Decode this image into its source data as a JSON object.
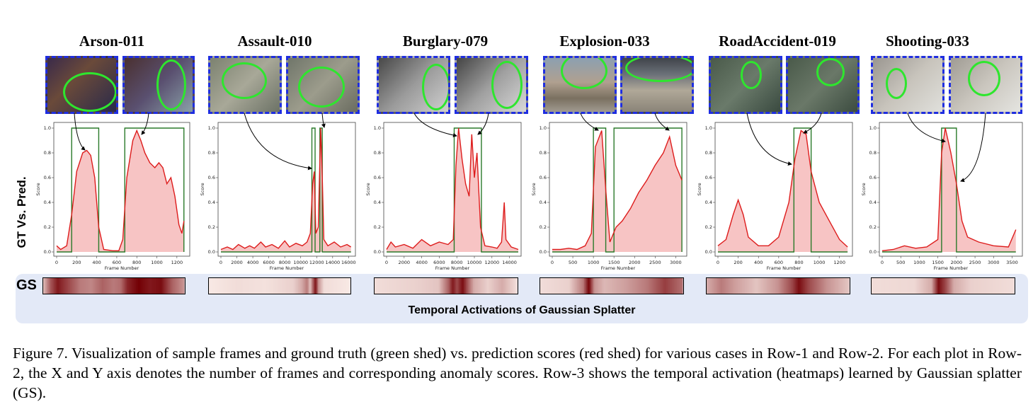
{
  "row_labels": {
    "gt_vs_pred": "GT Vs. Pred.",
    "gs": "GS"
  },
  "heatmap_caption": "Temporal Activations of Gaussian Splatter",
  "caption": "Figure 7. Visualization of sample frames and ground truth (green shed) vs. prediction scores (red shed) for various cases in Row-1 and Row-2. For each plot in Row-2, the X and Y axis denotes the number of frames and corresponding anomaly scores. Row-3 shows the temporal activation (heatmaps) learned by Gaussian splatter (GS).",
  "colors": {
    "frame_border": "#1f2ee0",
    "ellipse": "#2ee62e",
    "gt": "#2a7a2a",
    "pred": "#dd1c1c",
    "pred_fill": "#f7c4c4",
    "band": "#e3e9f7"
  },
  "chart_data": [
    {
      "type": "area",
      "title": "Arson-011",
      "xlabel": "Frame Number",
      "ylabel": "Score",
      "xlim": [
        0,
        1300
      ],
      "ylim": [
        0,
        1.0
      ],
      "xticks": [
        0,
        200,
        400,
        600,
        800,
        1000,
        1200
      ],
      "yticks": [
        0.0,
        0.2,
        0.4,
        0.6,
        0.8,
        1.0
      ],
      "gt_intervals": [
        [
          150,
          420
        ],
        [
          680,
          1270
        ]
      ],
      "pred_points": [
        [
          0,
          0.05
        ],
        [
          40,
          0.02
        ],
        [
          100,
          0.05
        ],
        [
          150,
          0.3
        ],
        [
          200,
          0.65
        ],
        [
          260,
          0.8
        ],
        [
          300,
          0.82
        ],
        [
          340,
          0.78
        ],
        [
          380,
          0.6
        ],
        [
          420,
          0.2
        ],
        [
          470,
          0.02
        ],
        [
          560,
          0.01
        ],
        [
          620,
          0.01
        ],
        [
          660,
          0.1
        ],
        [
          700,
          0.6
        ],
        [
          760,
          0.9
        ],
        [
          800,
          0.98
        ],
        [
          840,
          0.9
        ],
        [
          880,
          0.8
        ],
        [
          930,
          0.72
        ],
        [
          980,
          0.68
        ],
        [
          1020,
          0.72
        ],
        [
          1060,
          0.68
        ],
        [
          1100,
          0.55
        ],
        [
          1140,
          0.6
        ],
        [
          1180,
          0.45
        ],
        [
          1220,
          0.22
        ],
        [
          1250,
          0.15
        ],
        [
          1270,
          0.25
        ]
      ],
      "heat": [
        [
          0,
          0.25
        ],
        [
          0.05,
          0.65
        ],
        [
          0.1,
          0.9
        ],
        [
          0.18,
          0.7
        ],
        [
          0.26,
          0.5
        ],
        [
          0.34,
          0.45
        ],
        [
          0.42,
          0.6
        ],
        [
          0.5,
          0.5
        ],
        [
          0.55,
          0.55
        ],
        [
          0.6,
          0.85
        ],
        [
          0.68,
          1.0
        ],
        [
          0.76,
          0.9
        ],
        [
          0.84,
          0.95
        ],
        [
          0.92,
          0.6
        ],
        [
          1,
          0.4
        ]
      ]
    },
    {
      "type": "area",
      "title": "Assault-010",
      "xlabel": "Frame Number",
      "ylabel": "Score",
      "xlim": [
        0,
        16500
      ],
      "ylim": [
        0,
        1.0
      ],
      "xticks": [
        0,
        2000,
        4000,
        6000,
        8000,
        10000,
        12000,
        14000,
        16000
      ],
      "yticks": [
        0.0,
        0.2,
        0.4,
        0.6,
        0.8,
        1.0
      ],
      "gt_intervals": [
        [
          11400,
          11800
        ],
        [
          12400,
          12700
        ]
      ],
      "pred_points": [
        [
          0,
          0.02
        ],
        [
          800,
          0.04
        ],
        [
          1500,
          0.02
        ],
        [
          2200,
          0.06
        ],
        [
          3000,
          0.03
        ],
        [
          3600,
          0.05
        ],
        [
          4200,
          0.03
        ],
        [
          5000,
          0.08
        ],
        [
          5600,
          0.04
        ],
        [
          6400,
          0.06
        ],
        [
          7200,
          0.03
        ],
        [
          8000,
          0.09
        ],
        [
          8600,
          0.04
        ],
        [
          9400,
          0.07
        ],
        [
          10200,
          0.05
        ],
        [
          10800,
          0.08
        ],
        [
          11200,
          0.15
        ],
        [
          11500,
          0.55
        ],
        [
          11700,
          0.65
        ],
        [
          11900,
          0.15
        ],
        [
          12200,
          0.2
        ],
        [
          12500,
          1.0
        ],
        [
          12700,
          0.6
        ],
        [
          12900,
          0.1
        ],
        [
          13400,
          0.05
        ],
        [
          14200,
          0.08
        ],
        [
          15000,
          0.04
        ],
        [
          15800,
          0.06
        ],
        [
          16300,
          0.04
        ]
      ],
      "heat": [
        [
          0,
          0.05
        ],
        [
          0.2,
          0.1
        ],
        [
          0.4,
          0.08
        ],
        [
          0.6,
          0.15
        ],
        [
          0.66,
          0.3
        ],
        [
          0.7,
          0.5
        ],
        [
          0.72,
          0.2
        ],
        [
          0.76,
          0.95
        ],
        [
          0.78,
          0.4
        ],
        [
          0.82,
          0.1
        ],
        [
          1,
          0.05
        ]
      ]
    },
    {
      "type": "area",
      "title": "Burglary-079",
      "xlabel": "Frame Number",
      "ylabel": "Score",
      "xlim": [
        0,
        15000
      ],
      "ylim": [
        0,
        1.0
      ],
      "xticks": [
        0,
        2000,
        4000,
        6000,
        8000,
        10000,
        12000,
        14000
      ],
      "yticks": [
        0.0,
        0.2,
        0.4,
        0.6,
        0.8,
        1.0
      ],
      "gt_intervals": [
        [
          7700,
          10800
        ]
      ],
      "pred_points": [
        [
          0,
          0.02
        ],
        [
          500,
          0.08
        ],
        [
          1000,
          0.04
        ],
        [
          2000,
          0.06
        ],
        [
          3000,
          0.03
        ],
        [
          4000,
          0.1
        ],
        [
          5000,
          0.05
        ],
        [
          6000,
          0.08
        ],
        [
          7000,
          0.06
        ],
        [
          7600,
          0.1
        ],
        [
          7900,
          0.7
        ],
        [
          8200,
          1.0
        ],
        [
          8600,
          0.75
        ],
        [
          9000,
          0.55
        ],
        [
          9400,
          0.45
        ],
        [
          9700,
          0.95
        ],
        [
          10000,
          0.6
        ],
        [
          10300,
          0.8
        ],
        [
          10700,
          0.2
        ],
        [
          11200,
          0.05
        ],
        [
          12000,
          0.04
        ],
        [
          12600,
          0.03
        ],
        [
          13100,
          0.08
        ],
        [
          13400,
          0.4
        ],
        [
          13600,
          0.1
        ],
        [
          14200,
          0.04
        ],
        [
          15000,
          0.02
        ]
      ],
      "heat": [
        [
          0,
          0.1
        ],
        [
          0.3,
          0.15
        ],
        [
          0.45,
          0.2
        ],
        [
          0.52,
          0.6
        ],
        [
          0.55,
          0.9
        ],
        [
          0.58,
          0.7
        ],
        [
          0.62,
          0.95
        ],
        [
          0.66,
          0.6
        ],
        [
          0.7,
          0.3
        ],
        [
          0.8,
          0.15
        ],
        [
          0.9,
          0.3
        ],
        [
          1,
          0.1
        ]
      ]
    },
    {
      "type": "area",
      "title": "Explosion-033",
      "xlabel": "Frame Number",
      "ylabel": "Score",
      "xlim": [
        0,
        3200
      ],
      "ylim": [
        0,
        1.0
      ],
      "xticks": [
        0,
        500,
        1000,
        1500,
        2000,
        2500,
        3000
      ],
      "yticks": [
        0.0,
        0.2,
        0.4,
        0.6,
        0.8,
        1.0
      ],
      "gt_intervals": [
        [
          1000,
          1300
        ],
        [
          1500,
          3150
        ]
      ],
      "pred_points": [
        [
          0,
          0.02
        ],
        [
          200,
          0.02
        ],
        [
          400,
          0.03
        ],
        [
          600,
          0.02
        ],
        [
          800,
          0.05
        ],
        [
          950,
          0.15
        ],
        [
          1050,
          0.85
        ],
        [
          1200,
          0.98
        ],
        [
          1300,
          0.5
        ],
        [
          1400,
          0.08
        ],
        [
          1550,
          0.2
        ],
        [
          1700,
          0.25
        ],
        [
          1900,
          0.35
        ],
        [
          2100,
          0.48
        ],
        [
          2300,
          0.58
        ],
        [
          2500,
          0.7
        ],
        [
          2700,
          0.8
        ],
        [
          2850,
          0.93
        ],
        [
          3000,
          0.7
        ],
        [
          3150,
          0.58
        ]
      ],
      "heat": [
        [
          0,
          0.1
        ],
        [
          0.2,
          0.15
        ],
        [
          0.3,
          0.5
        ],
        [
          0.34,
          1.0
        ],
        [
          0.38,
          0.4
        ],
        [
          0.45,
          0.25
        ],
        [
          0.6,
          0.35
        ],
        [
          0.75,
          0.5
        ],
        [
          0.88,
          0.75
        ],
        [
          1,
          0.55
        ]
      ]
    },
    {
      "type": "area",
      "title": "RoadAccident-019",
      "xlabel": "Frame Number",
      "ylabel": "Score",
      "xlim": [
        0,
        1300
      ],
      "ylim": [
        0,
        1.0
      ],
      "xticks": [
        0,
        200,
        400,
        600,
        800,
        1000,
        1200
      ],
      "yticks": [
        0.0,
        0.2,
        0.4,
        0.6,
        0.8,
        1.0
      ],
      "gt_intervals": [
        [
          750,
          920
        ]
      ],
      "pred_points": [
        [
          0,
          0.05
        ],
        [
          80,
          0.1
        ],
        [
          150,
          0.3
        ],
        [
          200,
          0.42
        ],
        [
          250,
          0.3
        ],
        [
          300,
          0.12
        ],
        [
          400,
          0.05
        ],
        [
          500,
          0.05
        ],
        [
          600,
          0.12
        ],
        [
          700,
          0.4
        ],
        [
          760,
          0.75
        ],
        [
          820,
          0.98
        ],
        [
          870,
          0.95
        ],
        [
          920,
          0.65
        ],
        [
          1000,
          0.4
        ],
        [
          1100,
          0.25
        ],
        [
          1200,
          0.1
        ],
        [
          1280,
          0.04
        ]
      ],
      "heat": [
        [
          0,
          0.3
        ],
        [
          0.1,
          0.5
        ],
        [
          0.2,
          0.35
        ],
        [
          0.35,
          0.2
        ],
        [
          0.5,
          0.4
        ],
        [
          0.6,
          0.7
        ],
        [
          0.65,
          0.95
        ],
        [
          0.72,
          0.7
        ],
        [
          0.85,
          0.4
        ],
        [
          1,
          0.2
        ]
      ]
    },
    {
      "type": "area",
      "title": "Shooting-033",
      "xlabel": "Frame Number",
      "ylabel": "Score",
      "xlim": [
        0,
        3700
      ],
      "ylim": [
        0,
        1.0
      ],
      "xticks": [
        0,
        500,
        1000,
        1500,
        2000,
        2500,
        3000,
        3500
      ],
      "yticks": [
        0.0,
        0.2,
        0.4,
        0.6,
        0.8,
        1.0
      ],
      "gt_intervals": [
        [
          1600,
          2000
        ]
      ],
      "pred_points": [
        [
          0,
          0.01
        ],
        [
          300,
          0.02
        ],
        [
          600,
          0.05
        ],
        [
          900,
          0.03
        ],
        [
          1200,
          0.04
        ],
        [
          1500,
          0.1
        ],
        [
          1600,
          0.8
        ],
        [
          1700,
          1.0
        ],
        [
          1850,
          0.8
        ],
        [
          2000,
          0.55
        ],
        [
          2150,
          0.25
        ],
        [
          2300,
          0.12
        ],
        [
          2600,
          0.08
        ],
        [
          3000,
          0.05
        ],
        [
          3400,
          0.04
        ],
        [
          3600,
          0.18
        ]
      ],
      "heat": [
        [
          0,
          0.1
        ],
        [
          0.3,
          0.12
        ],
        [
          0.42,
          0.3
        ],
        [
          0.47,
          0.95
        ],
        [
          0.52,
          0.7
        ],
        [
          0.58,
          0.3
        ],
        [
          0.7,
          0.15
        ],
        [
          1,
          0.1
        ]
      ]
    }
  ]
}
